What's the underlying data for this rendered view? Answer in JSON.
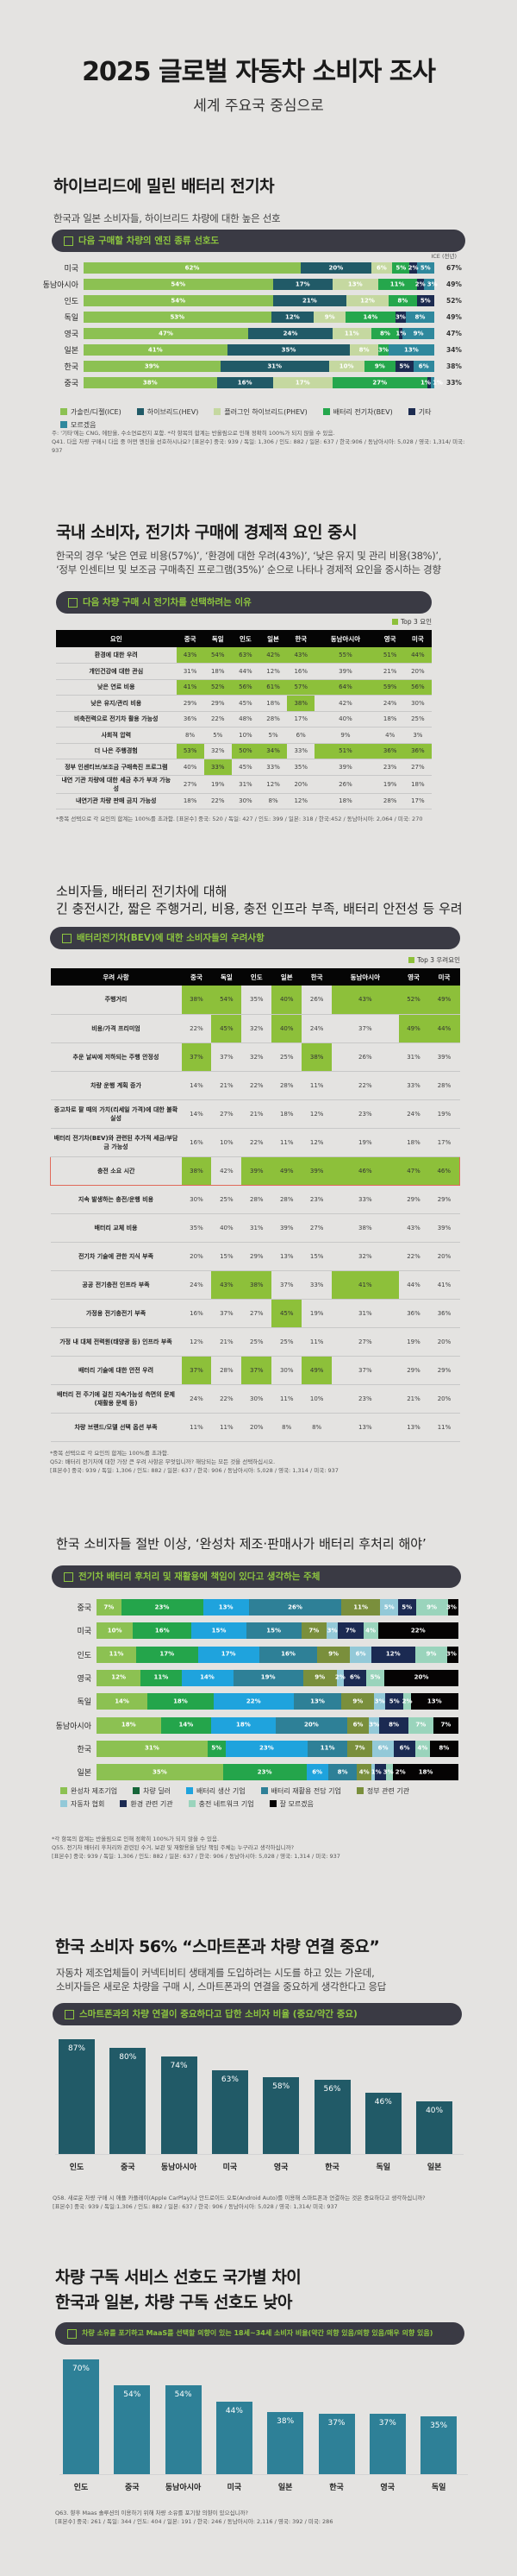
{
  "header": {
    "title": "2025 글로벌 자동차 소비자 조사",
    "subtitle": "세계 주요국 중심으로"
  },
  "s1": {
    "heading": "하이브리드에 밀린 배터리 전기차",
    "desc": "한국과 일본 소비자들, 하이브리드 차량에 대한 높은 선호",
    "pill": "다음 구매할 차량의 엔진 종류 선호도",
    "note1": "주: '기타'에는 CNG, 에탄올, 수소연료전지 포함. *각 항목의 합계는 반올림으로 인해 정확히 100%가 되지 않을 수 있음.",
    "note2": "Q41. 다음 차량 구매시 다음 중 어떤 엔진을 선호하시나요? [표본수] 중국: 939 / 독일: 1,306 / 인도: 882 / 일본: 637 / 한국:906 / 동남아시아: 5,028 / 영국: 1,314/ 미국: 937"
  },
  "s2": {
    "heading": "국내 소비자, 전기차 구매에 경제적 요인 중시",
    "desc1": "한국의 경우 ‘낮은 연료 비용(57%)’, ‘환경에 대한 우려(43%)’, ‘낮은 유지 및 관리 비용(38%)’,",
    "desc2": "‘정부 인센티브 및 보조금 구매촉진 프로그램(35%)’ 순으로 나타나 경제적 요인을 중시하는 경향",
    "pill": "다음 차량 구매 시 전기차를 선택하려는 이유",
    "note": "*중복 선택으로 각 요인의 합계는 100%를 초과함. [표본수] 중국: 520 / 독일: 427 / 인도: 399 / 일본: 318 / 한국:452 / 동남아시아: 2,064 / 미국: 270"
  },
  "s3": {
    "heading1": "소비자들, 배터리 전기차에 대해",
    "heading2": "긴 충전시간, 짧은 주행거리, 비용, 충전 인프라 부족, 배터리 안전성 등 우려",
    "pill": "배터리전기차(BEV)에 대한 소비자들의 우려사항",
    "note1": "*중복 선택으로 각 요인의 합계는 100%를 초과함.",
    "note2": "Q52: 배터리 전기차에 대한 가장 큰 우려 사항은 무엇입니까? 해당되는 모든 것을 선택하십시오.",
    "note3": "[표본수] 중국: 939 / 독일: 1,306 / 인도: 882 / 일본: 637 / 한국: 906 / 동남아시아: 5,028 / 영국: 1,314 / 미국: 937"
  },
  "s4": {
    "heading": "한국 소비자들 절반 이상, ‘완성차 제조·판매사가 배터리 후처리 해야’",
    "pill": "전기차 배터리 후처리 및 재활용에 책임이 있다고 생각하는 주체",
    "note1": "*각 항목의 합계는 반올림으로 인해 정확히 100%가 되지 않을 수 있음.",
    "note2": "Q55. 전기차 배터리 후처리와 관련된 수거, 보관 및 재활용을 담당 책임 주체는 누구라고 생각하십니까?",
    "note3": "[표본수] 중국: 939 / 독일: 1,306 / 인도: 882 / 일본: 637 / 한국: 906 / 동남아시아: 5,028 / 영국: 1,314 / 미국: 937"
  },
  "s5": {
    "heading": "한국 소비자 56% “스마트폰과 차량 연결 중요”",
    "desc1": "자동차 제조업체들이 커넥티비티 생태계를 도입하려는 시도를 하고 있는 가운데,",
    "desc2": "소비자들은 새로운 차량을 구매 시, 스마트폰과의 연결을 중요하게 생각한다고 응답",
    "pill": "스마트폰과의 차량 연결이 중요하다고 답한 소비자 비율 (중요/약간 중요)",
    "note1": "Q58. 새로운 차량 구매 시 애플 카플레이(Apple CarPlay)나 안드로이드 오토(Android Auto)를 이용해 스마트폰과 연결하는 것은 중요하다고 생각하십니까?",
    "note2": "[표본수] 중국: 939 / 독일:1,306 / 인도: 882 / 일본: 637 / 한국: 906 / 동남아시아: 5,028 / 영국: 1,314/ 미국: 937"
  },
  "s6": {
    "heading1": "차량 구독 서비스 선호도 국가별 차이",
    "heading2": "한국과 일본, 차량 구독 선호도 낮아",
    "pill": "차량 소유를 포기하고 MaaS를 선택할 의향이 있는 18세~34세 소비자 비율(약간 의향 있음/의향 있음/매우 의향 있음)",
    "note1": "Q63. 향후 Maas 솔루션의 이용하기 위해 차량 소유를 포기할 의향이 있으십니까?",
    "note2": "[표본수] 중국: 261 / 독일: 344 / 인도: 404 / 일본: 191 / 한국: 246 / 동남아시아: 2,116 / 영국: 392 / 미국: 286"
  },
  "chart_data": [
    {
      "type": "bar",
      "orientation": "horizontal-stacked",
      "unit": "%",
      "side_header": "ICE (전년)",
      "series": [
        {
          "name": "가솔린/디젤(ICE)",
          "color": "#8cc152"
        },
        {
          "name": "하이브리드(HEV)",
          "color": "#215a67"
        },
        {
          "name": "플러그인 하이브리드(PHEV)",
          "color": "#c5d8a0"
        },
        {
          "name": "배터리 전기차(BEV)",
          "color": "#25a74c"
        },
        {
          "name": "기타",
          "color": "#1c2b50"
        },
        {
          "name": "모르겠음",
          "color": "#2f889d"
        }
      ],
      "rows": [
        {
          "label": "미국",
          "values": [
            62,
            20,
            6,
            5,
            2,
            5
          ],
          "prev": "67%"
        },
        {
          "label": "동남아시아",
          "values": [
            54,
            17,
            13,
            11,
            2,
            3
          ],
          "prev": "49%"
        },
        {
          "label": "인도",
          "values": [
            54,
            21,
            12,
            8,
            5,
            0
          ],
          "prev": "52%"
        },
        {
          "label": "독일",
          "values": [
            53,
            12,
            9,
            14,
            3,
            8
          ],
          "prev": "49%"
        },
        {
          "label": "영국",
          "values": [
            47,
            24,
            11,
            8,
            1,
            9
          ],
          "prev": "47%"
        },
        {
          "label": "일본",
          "values": [
            41,
            35,
            8,
            3,
            0,
            13
          ],
          "prev": "34%"
        },
        {
          "label": "한국",
          "values": [
            39,
            31,
            10,
            9,
            5,
            6
          ],
          "prev": "38%"
        },
        {
          "label": "중국",
          "values": [
            38,
            16,
            17,
            27,
            1,
            1
          ],
          "prev": "33%"
        }
      ]
    },
    {
      "type": "table",
      "top_label": "Top 3 요인",
      "highlight_color": "#8dc03a",
      "columns": [
        "요인",
        "중국",
        "독일",
        "인도",
        "일본",
        "한국",
        "동남아시아",
        "영국",
        "미국"
      ],
      "rows": [
        {
          "label": "환경에 대한 우려",
          "values": [
            "43%",
            "54%",
            "63%",
            "42%",
            "43%",
            "55%",
            "51%",
            "44%"
          ],
          "top3": [
            0,
            1,
            2,
            3,
            4,
            5,
            6,
            7
          ]
        },
        {
          "label": "개인건강에 대한 관심",
          "values": [
            "31%",
            "18%",
            "44%",
            "12%",
            "16%",
            "39%",
            "21%",
            "20%"
          ],
          "top3": []
        },
        {
          "label": "낮은 연료 비용",
          "values": [
            "41%",
            "52%",
            "56%",
            "61%",
            "57%",
            "64%",
            "59%",
            "56%"
          ],
          "top3": [
            0,
            1,
            2,
            3,
            4,
            5,
            6,
            7
          ]
        },
        {
          "label": "낮은 유지/관리 비용",
          "values": [
            "29%",
            "29%",
            "45%",
            "18%",
            "38%",
            "42%",
            "24%",
            "30%"
          ],
          "top3": [
            4
          ]
        },
        {
          "label": "비축전력으로 전기차 활용 가능성",
          "values": [
            "36%",
            "22%",
            "48%",
            "28%",
            "17%",
            "40%",
            "18%",
            "25%"
          ],
          "top3": []
        },
        {
          "label": "사회적 압력",
          "values": [
            "8%",
            "5%",
            "10%",
            "5%",
            "6%",
            "9%",
            "4%",
            "3%"
          ],
          "top3": []
        },
        {
          "label": "더 나은 주행경험",
          "values": [
            "53%",
            "32%",
            "50%",
            "34%",
            "33%",
            "51%",
            "36%",
            "36%"
          ],
          "top3": [
            0,
            2,
            3,
            5,
            6,
            7
          ]
        },
        {
          "label": "정부 인센티브/보조금 구매촉진 프로그램",
          "values": [
            "40%",
            "33%",
            "45%",
            "33%",
            "35%",
            "39%",
            "23%",
            "27%"
          ],
          "top3": [
            1
          ]
        },
        {
          "label": "내연 기관 차량에 대한 세금 추가 부과 가능성",
          "values": [
            "27%",
            "19%",
            "31%",
            "12%",
            "20%",
            "26%",
            "19%",
            "18%"
          ],
          "top3": []
        },
        {
          "label": "내연기관 차량 판매 금지 가능성",
          "values": [
            "18%",
            "22%",
            "30%",
            "8%",
            "12%",
            "18%",
            "28%",
            "17%"
          ],
          "top3": []
        }
      ]
    },
    {
      "type": "table",
      "top_label": "Top 3 우려요인",
      "highlight_color": "#8dc03a",
      "outlined_row": "충전 소요 시간",
      "columns": [
        "우려 사항",
        "중국",
        "독일",
        "인도",
        "일본",
        "한국",
        "동남아시아",
        "영국",
        "미국"
      ],
      "rows": [
        {
          "label": "주행거리",
          "values": [
            "38%",
            "54%",
            "35%",
            "40%",
            "26%",
            "43%",
            "52%",
            "49%"
          ],
          "top3": [
            0,
            1,
            3,
            5,
            6,
            7
          ]
        },
        {
          "label": "비용/가격 프리미엄",
          "values": [
            "22%",
            "45%",
            "32%",
            "40%",
            "24%",
            "37%",
            "49%",
            "44%"
          ],
          "top3": [
            1,
            3,
            6,
            7
          ]
        },
        {
          "label": "추운 날씨에 저하되는 주행 안정성",
          "values": [
            "37%",
            "37%",
            "32%",
            "25%",
            "38%",
            "26%",
            "31%",
            "39%"
          ],
          "top3": [
            0,
            4
          ]
        },
        {
          "label": "차량 운행 계획 증가",
          "values": [
            "14%",
            "21%",
            "22%",
            "28%",
            "11%",
            "22%",
            "33%",
            "28%"
          ],
          "top3": []
        },
        {
          "label": "중고차로 팔 때의 가치(리세일 가격)에 대한 불확실성",
          "values": [
            "14%",
            "27%",
            "21%",
            "18%",
            "12%",
            "23%",
            "24%",
            "19%"
          ],
          "top3": []
        },
        {
          "label": "배터리 전기차(BEV)와 관련된 추가적 세금/부담금 가능성",
          "values": [
            "16%",
            "10%",
            "22%",
            "11%",
            "12%",
            "19%",
            "18%",
            "17%"
          ],
          "top3": []
        },
        {
          "label": "충전 소요 시간",
          "values": [
            "38%",
            "42%",
            "39%",
            "49%",
            "39%",
            "46%",
            "47%",
            "46%"
          ],
          "top3": [
            0,
            2,
            3,
            4,
            5,
            6,
            7
          ]
        },
        {
          "label": "지속 발생하는 충전/운행 비용",
          "values": [
            "30%",
            "25%",
            "28%",
            "28%",
            "23%",
            "33%",
            "29%",
            "29%"
          ],
          "top3": []
        },
        {
          "label": "배터리 교체 비용",
          "values": [
            "35%",
            "40%",
            "31%",
            "39%",
            "27%",
            "38%",
            "43%",
            "39%"
          ],
          "top3": []
        },
        {
          "label": "전기차 기술에 관한 지식 부족",
          "values": [
            "20%",
            "15%",
            "29%",
            "13%",
            "15%",
            "32%",
            "22%",
            "20%"
          ],
          "top3": []
        },
        {
          "label": "공공 전기충전 인프라 부족",
          "values": [
            "24%",
            "43%",
            "38%",
            "37%",
            "33%",
            "41%",
            "44%",
            "41%"
          ],
          "top3": [
            1,
            2,
            5
          ]
        },
        {
          "label": "가정용 전기충전기 부족",
          "values": [
            "16%",
            "37%",
            "27%",
            "45%",
            "19%",
            "31%",
            "36%",
            "36%"
          ],
          "top3": [
            3
          ]
        },
        {
          "label": "가정 내 대체 전력원(태양광 등) 인프라 부족",
          "values": [
            "12%",
            "21%",
            "25%",
            "25%",
            "11%",
            "27%",
            "19%",
            "20%"
          ],
          "top3": []
        },
        {
          "label": "배터리 기술에 대한 안전 우려",
          "values": [
            "37%",
            "28%",
            "37%",
            "30%",
            "49%",
            "37%",
            "29%",
            "29%"
          ],
          "top3": [
            0,
            2,
            4
          ]
        },
        {
          "label": "배터리 전 주기에 걸친 지속가능성 측면의 문제(재활용 문제 등)",
          "values": [
            "24%",
            "22%",
            "30%",
            "11%",
            "10%",
            "23%",
            "21%",
            "20%"
          ],
          "top3": []
        },
        {
          "label": "차량 브랜드/모델 선택 옵션 부족",
          "values": [
            "11%",
            "11%",
            "20%",
            "8%",
            "8%",
            "13%",
            "13%",
            "11%"
          ],
          "top3": []
        }
      ]
    },
    {
      "type": "bar",
      "orientation": "horizontal-stacked",
      "unit": "%",
      "series": [
        {
          "name": "완성차 제조기업",
          "color": "#8cc152"
        },
        {
          "name": "차량 딜러",
          "color": "#24a54b",
          "legend_color": "#17663a"
        },
        {
          "name": "배터리 생산 기업",
          "color": "#1fa3dd"
        },
        {
          "name": "배터리 재활용 전담 기업",
          "color": "#2e8097"
        },
        {
          "name": "정부 관련 기관",
          "color": "#7a8f3c"
        },
        {
          "name": "자동차 협회",
          "color": "#93c9d8"
        },
        {
          "name": "환경 관련 기관",
          "color": "#1b2a52"
        },
        {
          "name": "충전 네트워크 기업",
          "color": "#9ad4bc"
        },
        {
          "name": "잘 모르겠음",
          "color": "#050303"
        }
      ],
      "rows": [
        {
          "label": "중국",
          "values": [
            7,
            23,
            13,
            26,
            11,
            5,
            5,
            9,
            3
          ]
        },
        {
          "label": "미국",
          "values": [
            10,
            16,
            15,
            15,
            7,
            3,
            7,
            4,
            22
          ]
        },
        {
          "label": "인도",
          "values": [
            11,
            17,
            17,
            16,
            9,
            6,
            12,
            9,
            3
          ]
        },
        {
          "label": "영국",
          "values": [
            12,
            11,
            14,
            19,
            9,
            2,
            6,
            5,
            20
          ]
        },
        {
          "label": "독일",
          "values": [
            14,
            18,
            22,
            13,
            9,
            3,
            5,
            2,
            13
          ]
        },
        {
          "label": "동남아시아",
          "values": [
            18,
            14,
            18,
            20,
            6,
            3,
            8,
            7,
            7
          ]
        },
        {
          "label": "한국",
          "values": [
            31,
            5,
            23,
            11,
            7,
            6,
            6,
            4,
            8
          ]
        },
        {
          "label": "일본",
          "values": [
            35,
            23,
            6,
            8,
            4,
            1,
            3,
            2,
            18
          ]
        }
      ]
    },
    {
      "type": "bar",
      "unit": "%",
      "color": "#215a67",
      "ylim": [
        0,
        90
      ],
      "categories": [
        "인도",
        "중국",
        "동남아시아",
        "미국",
        "영국",
        "한국",
        "독일",
        "일본"
      ],
      "values": [
        87,
        80,
        74,
        63,
        58,
        56,
        46,
        40
      ]
    },
    {
      "type": "bar",
      "unit": "%",
      "color": "#2e8097",
      "ylim": [
        0,
        72
      ],
      "categories": [
        "인도",
        "중국",
        "동남아시아",
        "미국",
        "일본",
        "한국",
        "영국",
        "독일"
      ],
      "values": [
        70,
        54,
        54,
        44,
        38,
        37,
        37,
        35
      ]
    }
  ]
}
